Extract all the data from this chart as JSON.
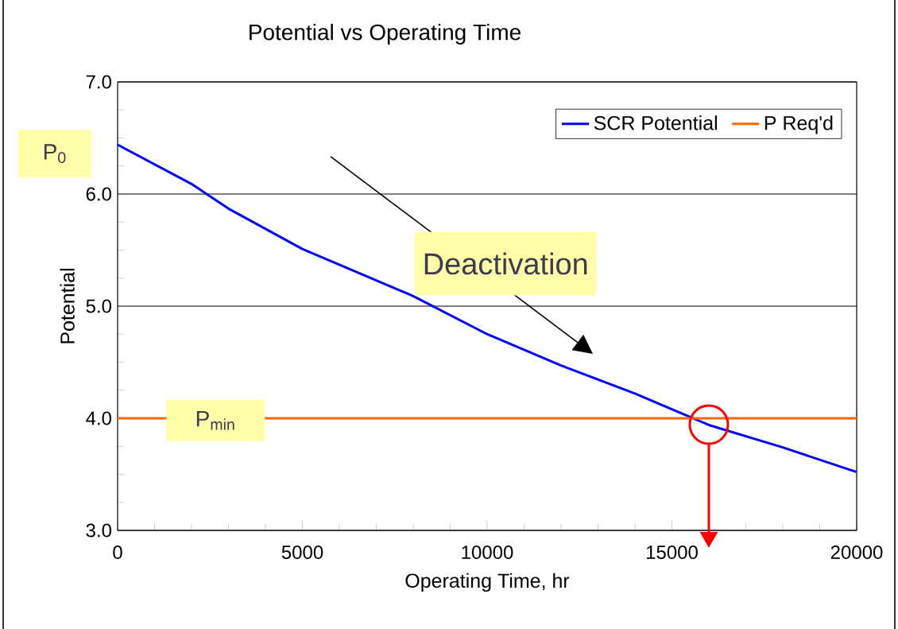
{
  "chart_data": {
    "type": "line",
    "title": "Potential vs Operating Time",
    "xlabel": "Operating Time, hr",
    "ylabel": "Potential",
    "series": [
      {
        "name": "SCR Potential",
        "color": "#0000ff",
        "x": [
          0,
          2000,
          3000,
          5000,
          8000,
          10000,
          12000,
          14000,
          16000,
          18000,
          20000
        ],
        "values": [
          6.44,
          6.09,
          5.87,
          5.51,
          5.09,
          4.75,
          4.47,
          4.22,
          3.94,
          3.74,
          3.52
        ]
      },
      {
        "name": "P Req'd",
        "color": "#ff6600",
        "x": [
          0,
          20000
        ],
        "values": [
          4.0,
          4.0
        ]
      }
    ],
    "xlim": [
      0,
      20000
    ],
    "xticks": [
      0,
      5000,
      10000,
      15000,
      20000
    ],
    "ylim": [
      3,
      7
    ],
    "yticks": [
      {
        "value": 3,
        "label": "3.0"
      },
      {
        "value": 4,
        "label": "4.0"
      },
      {
        "value": 5,
        "label": "5.0"
      },
      {
        "value": 6,
        "label": "6.0"
      },
      {
        "value": 7,
        "label": "7.0"
      }
    ],
    "grid": "y",
    "legend": "top right",
    "marker": "none",
    "line_style": "solid",
    "annotations": [
      "P$_{0}$",
      "P$_{min}$",
      "Deactivation"
    ]
  }
}
